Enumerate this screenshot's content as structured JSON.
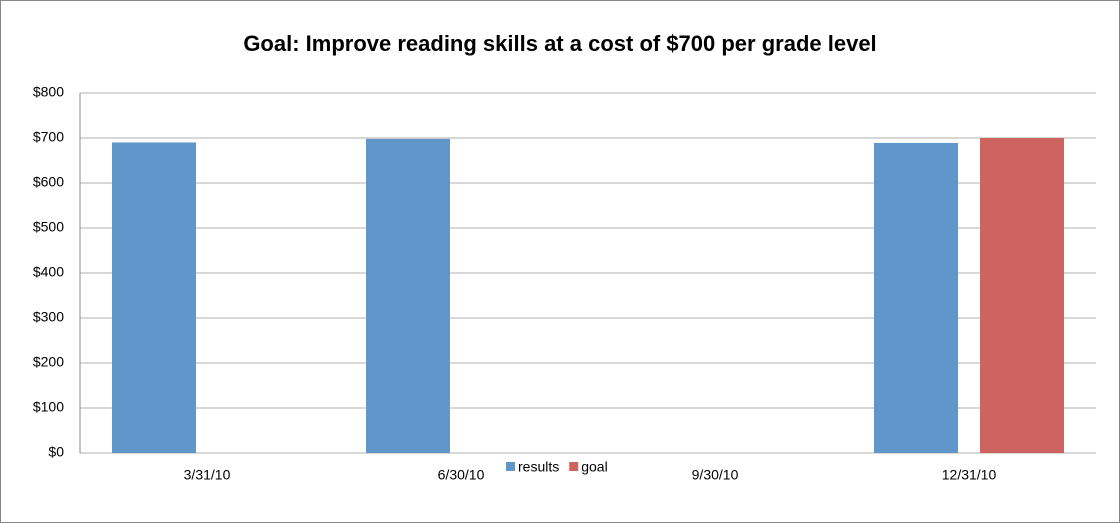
{
  "chart_data": {
    "type": "bar",
    "title": "Goal: Improve reading skills at a cost of $700 per grade level",
    "categories": [
      "3/31/10",
      "6/30/10",
      "9/30/10",
      "12/31/10"
    ],
    "series": [
      {
        "name": "results",
        "color": "#6096c9",
        "values": [
          690,
          698,
          null,
          689
        ]
      },
      {
        "name": "goal",
        "color": "#cd6460",
        "values": [
          null,
          null,
          null,
          700
        ]
      }
    ],
    "ylim": [
      0,
      800
    ],
    "yticks": [
      {
        "value": 0,
        "label": "$0"
      },
      {
        "value": 100,
        "label": "$100"
      },
      {
        "value": 200,
        "label": "$200"
      },
      {
        "value": 300,
        "label": "$300"
      },
      {
        "value": 400,
        "label": "$400"
      },
      {
        "value": 500,
        "label": "$500"
      },
      {
        "value": 600,
        "label": "$600"
      },
      {
        "value": 700,
        "label": "$700"
      },
      {
        "value": 800,
        "label": "$800"
      }
    ],
    "grid": true,
    "legend": "bottom"
  }
}
